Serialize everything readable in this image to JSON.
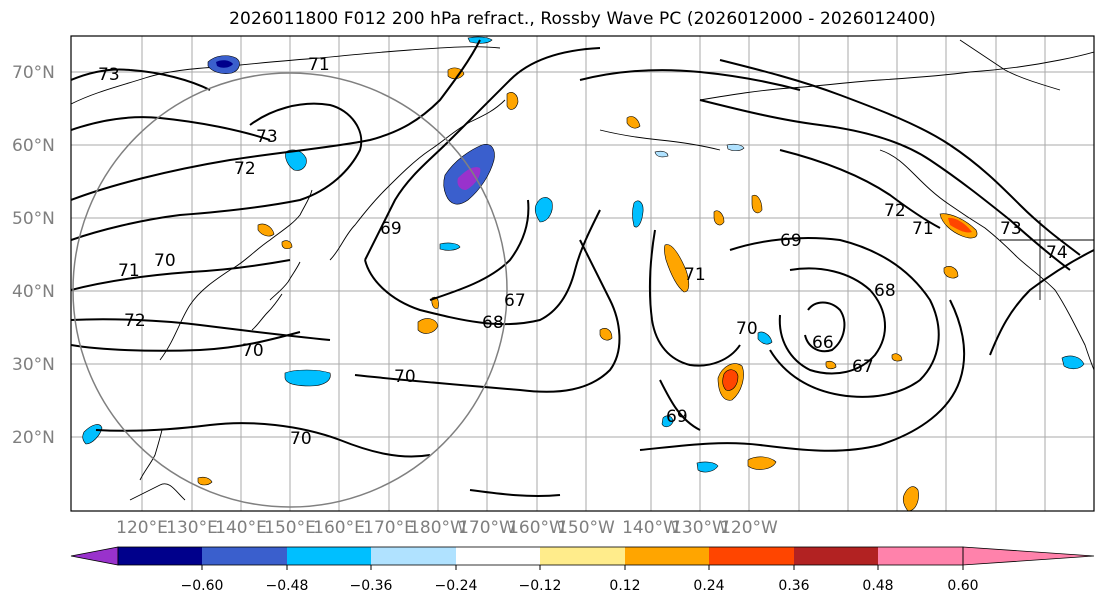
{
  "title": "2026011800 F012 200 hPa refract., Rossby Wave PC (2026012000 - 2026012400)",
  "map": {
    "lat_labels": [
      "70°N",
      "60°N",
      "50°N",
      "40°N",
      "30°N",
      "20°N"
    ],
    "lon_labels": [
      "120°E",
      "130°E",
      "140°E",
      "150°E",
      "160°E",
      "170°E",
      "180°W",
      "170°W",
      "160°W",
      "150°W",
      "140°W",
      "130°W",
      "120°W"
    ],
    "contour_labels": [
      "73",
      "71",
      "73",
      "72",
      "70",
      "71",
      "72",
      "70",
      "69",
      "67",
      "68",
      "70",
      "70",
      "69",
      "71",
      "70",
      "68",
      "66",
      "67",
      "69",
      "72",
      "71",
      "73",
      "74"
    ]
  },
  "colorbar": {
    "tick_labels": [
      "−0.60",
      "−0.48",
      "−0.36",
      "−0.24",
      "−0.12",
      "0.12",
      "0.24",
      "0.36",
      "0.48",
      "0.60"
    ],
    "colors": [
      "#9932cc",
      "#00008b",
      "#3a5fcd",
      "#00bfff",
      "#b0e2ff",
      "#ffffff",
      "#ffec8b",
      "#ffa500",
      "#ff4500",
      "#b22222",
      "#ff82ab"
    ]
  }
}
